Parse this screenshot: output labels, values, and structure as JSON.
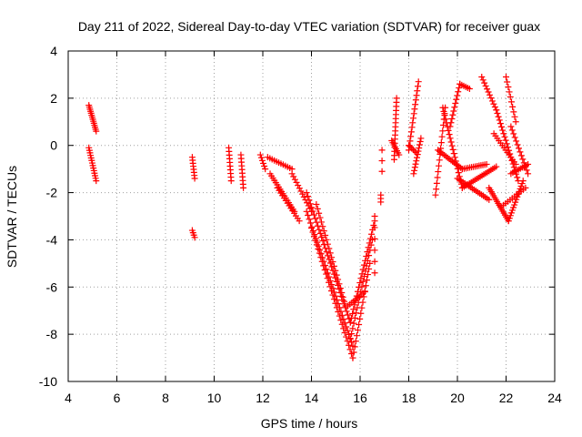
{
  "chart_data": {
    "type": "scatter",
    "title": "Day 211 of 2022, Sidereal Day-to-day VTEC variation (SDTVAR) for receiver guax",
    "xlabel": "GPS time / hours",
    "ylabel": "SDTVAR / TECUs",
    "xlim": [
      4,
      24
    ],
    "ylim": [
      -10,
      4
    ],
    "xticks": [
      4,
      6,
      8,
      10,
      12,
      14,
      16,
      18,
      20,
      22,
      24
    ],
    "yticks": [
      -10,
      -8,
      -6,
      -4,
      -2,
      0,
      2,
      4
    ],
    "grid": true,
    "marker": "+",
    "color": "#ff0000",
    "segments": [
      {
        "x0": 4.85,
        "y0": 1.7,
        "x1": 5.15,
        "y1": 0.6,
        "n": 14
      },
      {
        "x0": 4.85,
        "y0": -0.1,
        "x1": 5.15,
        "y1": -1.5,
        "n": 14
      },
      {
        "x0": 9.1,
        "y0": -0.5,
        "x1": 9.2,
        "y1": -1.4,
        "n": 8
      },
      {
        "x0": 9.1,
        "y0": -3.6,
        "x1": 9.2,
        "y1": -3.9,
        "n": 4
      },
      {
        "x0": 10.6,
        "y0": -0.1,
        "x1": 10.7,
        "y1": -1.5,
        "n": 10
      },
      {
        "x0": 11.1,
        "y0": -0.4,
        "x1": 11.2,
        "y1": -1.8,
        "n": 10
      },
      {
        "x0": 11.9,
        "y0": -0.4,
        "x1": 12.1,
        "y1": -1.0,
        "n": 6
      },
      {
        "x0": 12.2,
        "y0": -0.5,
        "x1": 13.2,
        "y1": -1.0,
        "n": 12
      },
      {
        "x0": 12.3,
        "y0": -1.2,
        "x1": 13.3,
        "y1": -2.8,
        "n": 18
      },
      {
        "x0": 13.2,
        "y0": -1.2,
        "x1": 14.0,
        "y1": -2.8,
        "n": 14
      },
      {
        "x0": 12.6,
        "y0": -1.8,
        "x1": 13.5,
        "y1": -3.2,
        "n": 14
      },
      {
        "x0": 13.8,
        "y0": -2.0,
        "x1": 15.6,
        "y1": -7.5,
        "n": 36
      },
      {
        "x0": 13.8,
        "y0": -2.8,
        "x1": 15.7,
        "y1": -8.5,
        "n": 36
      },
      {
        "x0": 14.0,
        "y0": -3.5,
        "x1": 15.7,
        "y1": -9.0,
        "n": 32
      },
      {
        "x0": 14.2,
        "y0": -2.5,
        "x1": 15.4,
        "y1": -6.8,
        "n": 24
      },
      {
        "x0": 15.6,
        "y0": -7.5,
        "x1": 16.6,
        "y1": -3.2,
        "n": 24
      },
      {
        "x0": 15.7,
        "y0": -9.0,
        "x1": 16.4,
        "y1": -5.0,
        "n": 18
      },
      {
        "x0": 15.6,
        "y0": -8.2,
        "x1": 16.5,
        "y1": -4.0,
        "n": 20
      },
      {
        "x0": 15.5,
        "y0": -6.8,
        "x1": 16.2,
        "y1": -6.2,
        "n": 10
      },
      {
        "x0": 16.6,
        "y0": -3.0,
        "x1": 16.6,
        "y1": -5.4,
        "n": 6
      },
      {
        "x0": 16.85,
        "y0": -2.1,
        "x1": 16.85,
        "y1": -2.4,
        "n": 3
      },
      {
        "x0": 16.9,
        "y0": -0.2,
        "x1": 16.9,
        "y1": -1.1,
        "n": 3
      },
      {
        "x0": 17.4,
        "y0": -0.6,
        "x1": 17.5,
        "y1": 2.0,
        "n": 16
      },
      {
        "x0": 17.3,
        "y0": 0.2,
        "x1": 17.6,
        "y1": -0.4,
        "n": 8
      },
      {
        "x0": 18.0,
        "y0": -0.2,
        "x1": 18.4,
        "y1": 2.7,
        "n": 16
      },
      {
        "x0": 18.2,
        "y0": -1.2,
        "x1": 18.5,
        "y1": 0.3,
        "n": 12
      },
      {
        "x0": 18.0,
        "y0": 0.0,
        "x1": 18.3,
        "y1": -0.3,
        "n": 6
      },
      {
        "x0": 19.1,
        "y0": -2.1,
        "x1": 19.5,
        "y1": 1.6,
        "n": 16
      },
      {
        "x0": 19.4,
        "y0": 1.6,
        "x1": 20.2,
        "y1": -1.8,
        "n": 22
      },
      {
        "x0": 19.7,
        "y0": 0.8,
        "x1": 20.1,
        "y1": 2.6,
        "n": 12
      },
      {
        "x0": 20.1,
        "y0": 2.6,
        "x1": 20.5,
        "y1": 2.4,
        "n": 6
      },
      {
        "x0": 19.2,
        "y0": -0.2,
        "x1": 20.2,
        "y1": -1.0,
        "n": 16
      },
      {
        "x0": 20.2,
        "y0": -1.0,
        "x1": 21.2,
        "y1": -0.8,
        "n": 14
      },
      {
        "x0": 20.2,
        "y0": -1.8,
        "x1": 21.6,
        "y1": -0.9,
        "n": 20
      },
      {
        "x0": 20.0,
        "y0": -1.4,
        "x1": 21.3,
        "y1": -2.3,
        "n": 18
      },
      {
        "x0": 21.0,
        "y0": 2.9,
        "x1": 21.6,
        "y1": 1.5,
        "n": 12
      },
      {
        "x0": 21.6,
        "y0": 1.5,
        "x1": 22.5,
        "y1": -1.5,
        "n": 22
      },
      {
        "x0": 21.5,
        "y0": 0.5,
        "x1": 22.4,
        "y1": -0.8,
        "n": 14
      },
      {
        "x0": 21.3,
        "y0": -1.8,
        "x1": 22.1,
        "y1": -3.2,
        "n": 18
      },
      {
        "x0": 22.1,
        "y0": -3.2,
        "x1": 22.7,
        "y1": -1.5,
        "n": 16
      },
      {
        "x0": 22.0,
        "y0": 2.9,
        "x1": 22.4,
        "y1": 1.0,
        "n": 10
      },
      {
        "x0": 22.2,
        "y0": 0.8,
        "x1": 22.9,
        "y1": -1.2,
        "n": 14
      },
      {
        "x0": 22.2,
        "y0": -1.2,
        "x1": 22.9,
        "y1": -0.8,
        "n": 10
      },
      {
        "x0": 21.8,
        "y0": -2.6,
        "x1": 22.8,
        "y1": -1.8,
        "n": 12
      }
    ]
  }
}
